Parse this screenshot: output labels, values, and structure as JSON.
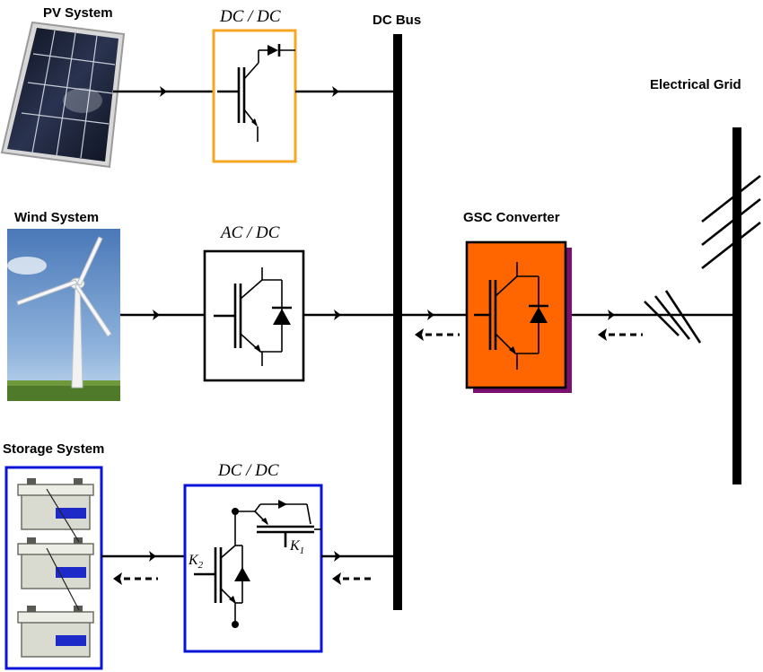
{
  "labels": {
    "pv_system": "PV System",
    "wind_system": "Wind System",
    "storage_system": "Storage System",
    "dc_bus": "DC Bus",
    "electrical_grid": "Electrical Grid",
    "gsc_converter": "GSC Converter",
    "pv_converter": "DC / DC",
    "wind_converter": "AC / DC",
    "storage_converter": "DC / DC",
    "k1": "K",
    "k1_sub": "1",
    "k2": "K",
    "k2_sub": "2"
  },
  "colors": {
    "pv_converter_border": "#F5A623",
    "wind_converter_border": "#000000",
    "storage_converter_border": "#0A14D8",
    "storage_frame_border": "#0A14D8",
    "gsc_fill": "#FF6600",
    "gsc_shadow": "#7A1070",
    "battery_stripe": "#1E2AC8"
  }
}
